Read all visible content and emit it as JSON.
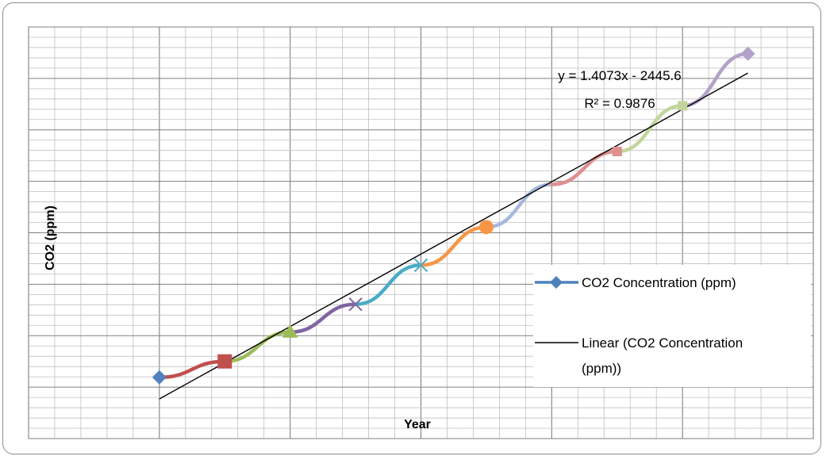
{
  "chart_data": {
    "type": "line",
    "title": "",
    "xlabel": "Year",
    "ylabel": "CO2 (ppm)",
    "x": [
      1960,
      1965,
      1970,
      1975,
      1980,
      1985,
      1990,
      1995,
      2000,
      2005
    ],
    "series": [
      {
        "name": "CO2 Concentration (ppm)",
        "values": [
          316.9,
          320.0,
          325.7,
          331.1,
          338.7,
          346.1,
          354.4,
          360.8,
          369.7,
          379.8
        ],
        "segment_colors": [
          "#c0504d",
          "#9bbb59",
          "#8064a2",
          "#4bacc6",
          "#f79646",
          "#a6b9dd",
          "#de8f8e",
          "#c2d69b",
          "#b3a2c7"
        ],
        "marker_colors": [
          "#4f81bd",
          "#c0504d",
          "#9bbb59",
          "#8064a2",
          "#4bacc6",
          "#f79646",
          "#a6b9dd",
          "#de8f8e",
          "#c2d69b",
          "#b3a2c7"
        ],
        "markers": [
          "diamond",
          "square",
          "triangle",
          "x",
          "x",
          "circle",
          "none",
          "square",
          "square",
          "diamond"
        ]
      },
      {
        "name": "Linear (CO2 Concentration (ppm))",
        "type": "trendline",
        "slope": 1.4073,
        "intercept": -2445.6,
        "color": "#000000"
      }
    ],
    "annotations": {
      "equation": "y = 1.4073x - 2445.6",
      "r_squared": "R² = 0.9876"
    },
    "legend": {
      "placement": "right",
      "entries": [
        {
          "label": "CO2 Concentration (ppm)",
          "color": "#4f81bd",
          "marker": "diamond"
        },
        {
          "label_line1": "Linear (CO2 Concentration",
          "label_line2": "(ppm))",
          "color": "#000000",
          "marker": "none"
        }
      ]
    },
    "xlim": [
      1950,
      2010
    ],
    "ylim": [
      305,
      385
    ],
    "grid": true,
    "tick_labels_visible": false
  }
}
